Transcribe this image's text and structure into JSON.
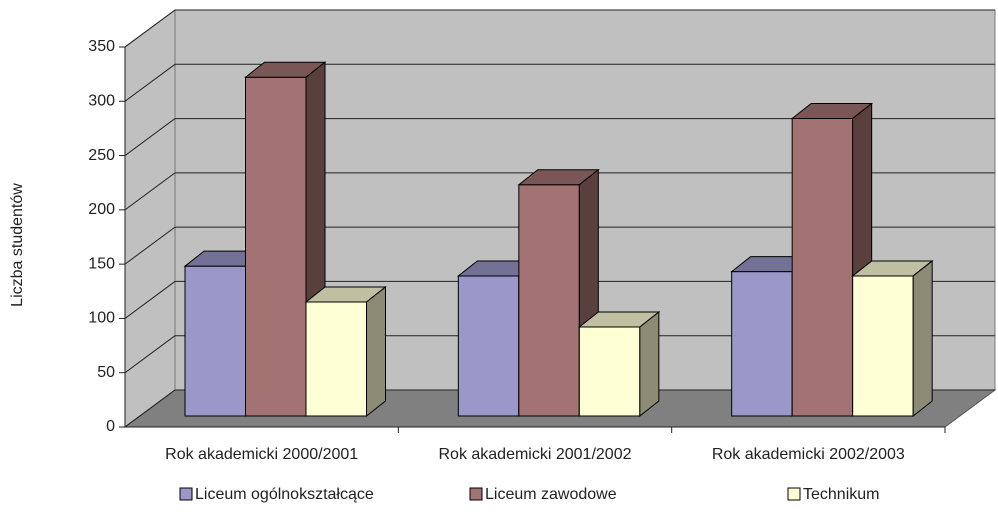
{
  "chart_data": {
    "type": "bar3d",
    "ylabel": "Liczba studentów",
    "categories": [
      "Rok akademicki 2000/2001",
      "Rok akademicki 2001/2002",
      "Rok akademicki 2002/2003"
    ],
    "series": [
      {
        "name": "Liceum ogólnokształcące",
        "color": "#9b97c9",
        "values": [
          138,
          129,
          133
        ]
      },
      {
        "name": "Liceum zawodowe",
        "color": "#a37373",
        "values": [
          312,
          213,
          274
        ]
      },
      {
        "name": "Technikum",
        "color": "#ffffd6",
        "values": [
          105,
          82,
          129
        ]
      }
    ],
    "ylim": [
      0,
      350
    ],
    "yticks": [
      0,
      50,
      100,
      150,
      200,
      250,
      300,
      350
    ],
    "grid": true,
    "legend": "bottom"
  }
}
